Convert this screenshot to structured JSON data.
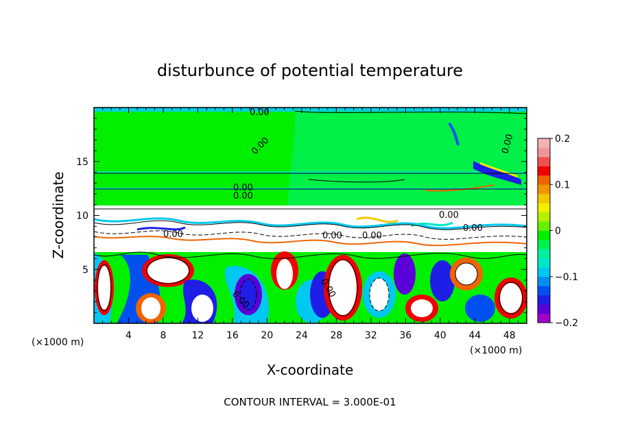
{
  "chart_data": {
    "type": "heatmap",
    "title": "disturbunce of potential temperature",
    "xlabel": "X-coordinate",
    "ylabel": "Z-coordinate",
    "x_unit": "(×1000 m)",
    "z_unit": "(×1000 m)",
    "footer": "CONTOUR INTERVAL = 3.000E-01",
    "xlim": [
      0,
      50
    ],
    "ylim": [
      0,
      20
    ],
    "x_ticks": [
      "4",
      "8",
      "12",
      "16",
      "20",
      "24",
      "28",
      "32",
      "36",
      "40",
      "44",
      "48"
    ],
    "y_ticks": [
      "5",
      "10",
      "15"
    ],
    "contour_labels": [
      "0.00",
      "0.00",
      "0.00",
      "0.00",
      "0.00",
      "0.00",
      "0.00",
      "0.00",
      "0.00",
      "0.00",
      "0.00",
      "0.00"
    ],
    "colorbar": {
      "range": [
        -0.2,
        0.2
      ],
      "tick_labels": [
        "0.2",
        "0.1",
        "0",
        "−0.1",
        "−0.2"
      ],
      "colors": [
        "#a000c8",
        "#5a00d8",
        "#1e1ee6",
        "#0050f0",
        "#0090f0",
        "#00c8f0",
        "#00e6c8",
        "#00f0a0",
        "#00f050",
        "#00f000",
        "#64f000",
        "#b4f000",
        "#f0f000",
        "#f0c800",
        "#f09600",
        "#f06400",
        "#f00000",
        "#f05050",
        "#f09696",
        "#f0b4b4"
      ]
    }
  }
}
